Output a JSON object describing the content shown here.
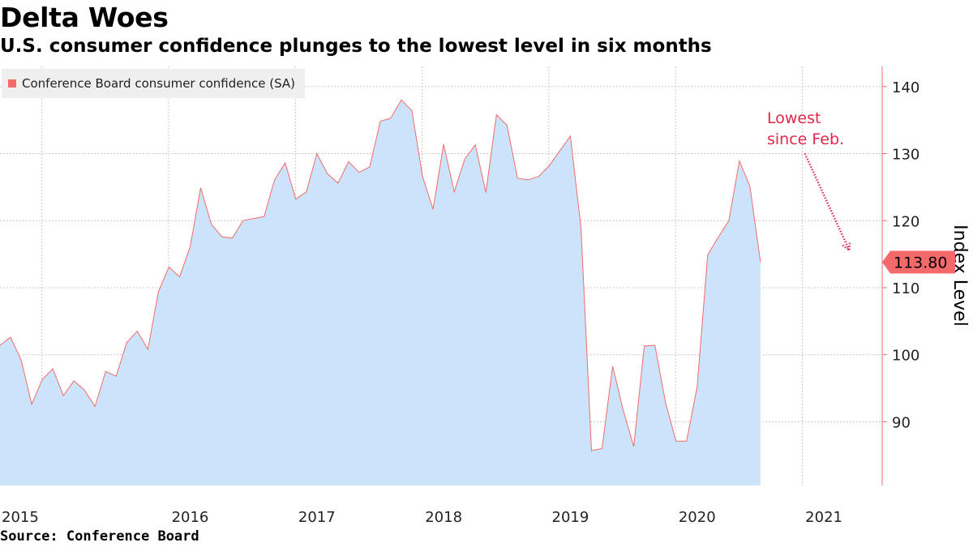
{
  "title": "Delta Woes",
  "subtitle": "U.S. consumer confidence plunges to the lowest level in six months",
  "source": "Source: Conference Board",
  "colors": {
    "line": "#f46a6a",
    "fill": "#cce4fb",
    "annotation": "#e3264a",
    "grid": "#c8c8c8",
    "badge": "#f46a6a"
  },
  "chart_data": {
    "type": "area",
    "title": "Delta Woes",
    "subtitle": "U.S. consumer confidence plunges to the lowest level in six months",
    "xlabel": "",
    "ylabel": "Index Level",
    "legend": {
      "label": "Conference Board consumer confidence (SA)",
      "position": "top-left"
    },
    "ylim": [
      80.5,
      143
    ],
    "yticks": [
      90,
      100,
      110,
      120,
      130,
      140
    ],
    "xlim": [
      2015.0,
      2021.96
    ],
    "xticks": [
      {
        "label": "2015",
        "x": 2015.0
      },
      {
        "label": "2016",
        "x": 2016.0
      },
      {
        "label": "2017",
        "x": 2017.0
      },
      {
        "label": "2018",
        "x": 2018.0
      },
      {
        "label": "2019",
        "x": 2019.0
      },
      {
        "label": "2020",
        "x": 2020.0
      },
      {
        "label": "2021",
        "x": 2021.0
      }
    ],
    "grid": true,
    "series": [
      {
        "name": "Conference Board consumer confidence (SA)",
        "start_year": 2015,
        "start_month": 1,
        "values": [
          101.4,
          102.6,
          99.2,
          92.6,
          96.3,
          97.9,
          93.9,
          96.1,
          94.7,
          92.3,
          97.5,
          96.8,
          101.8,
          103.5,
          100.8,
          109.4,
          113.1,
          111.6,
          116.1,
          124.9,
          119.5,
          117.6,
          117.4,
          120.0,
          120.3,
          120.6,
          126.1,
          128.6,
          123.2,
          124.3,
          130.0,
          127.0,
          125.6,
          128.8,
          127.2,
          128.0,
          134.8,
          135.3,
          138.0,
          136.4,
          126.6,
          121.7,
          131.4,
          124.3,
          129.2,
          131.3,
          124.2,
          135.8,
          134.2,
          126.3,
          126.1,
          126.6,
          128.2,
          130.4,
          132.6,
          119.0,
          85.7,
          86.0,
          98.3,
          91.7,
          86.3,
          101.3,
          101.4,
          92.9,
          87.1,
          87.1,
          95.2,
          114.9,
          117.5,
          120.0,
          128.9,
          125.1,
          113.8
        ],
        "last_value": "113.80"
      }
    ],
    "annotations": [
      {
        "text_line1": "Lowest",
        "text_line2": "since Feb.",
        "arrow_from": [
          2021.35,
          130
        ],
        "arrow_to": [
          2021.7,
          115.6
        ]
      }
    ]
  }
}
